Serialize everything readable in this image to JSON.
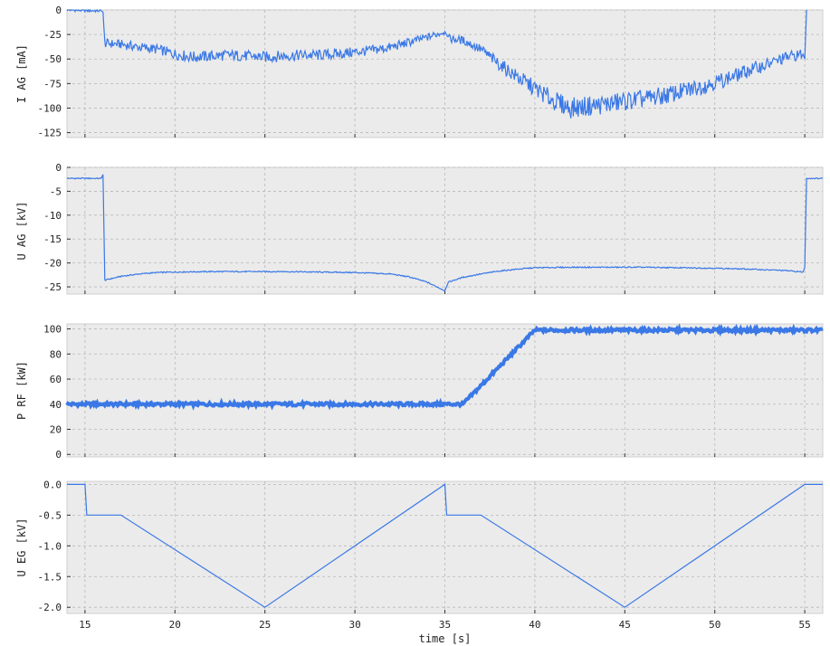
{
  "chart_data": [
    {
      "type": "line",
      "ylabel": "I AG [mA]",
      "xlim": [
        14,
        56
      ],
      "ylim": [
        -130,
        0
      ],
      "yticks": [
        0,
        -25,
        -50,
        -75,
        -100,
        -125
      ],
      "grid": true,
      "color": "#3a78e6",
      "x": [
        14,
        15.9,
        16.0,
        16.1,
        17,
        18,
        19,
        20,
        21,
        22,
        23,
        24,
        25,
        26,
        27,
        28,
        29,
        30,
        31,
        32,
        33,
        34,
        35,
        35.2,
        36,
        37,
        38,
        39,
        40,
        41,
        42,
        43,
        44,
        45,
        46,
        47,
        48,
        49,
        50,
        51,
        52,
        53,
        54,
        54.9,
        55.0,
        55.1
      ],
      "y": [
        0,
        -1,
        -2,
        -34,
        -35,
        -38,
        -40,
        -45,
        -48,
        -47,
        -46,
        -47,
        -48,
        -47,
        -46,
        -46,
        -45,
        -43,
        -41,
        -38,
        -33,
        -28,
        -22,
        -29,
        -31,
        -40,
        -55,
        -68,
        -80,
        -92,
        -100,
        -98,
        -96,
        -93,
        -91,
        -88,
        -84,
        -79,
        -74,
        -68,
        -61,
        -55,
        -48,
        -45,
        -50,
        0
      ]
    },
    {
      "type": "line",
      "ylabel": "U AG [kV]",
      "xlim": [
        14,
        56
      ],
      "ylim": [
        -26.5,
        0
      ],
      "yticks": [
        0,
        -5,
        -10,
        -15,
        -20,
        -25
      ],
      "grid": true,
      "color": "#3a78e6",
      "x": [
        14,
        15.9,
        16.0,
        16.1,
        17,
        18,
        19,
        20,
        22,
        24,
        26,
        28,
        30,
        32,
        33,
        34,
        35,
        35.2,
        36,
        37,
        38,
        39,
        40,
        42,
        44,
        46,
        48,
        50,
        52,
        54,
        54.9,
        55.0,
        55.1,
        56
      ],
      "y": [
        -2.3,
        -2.3,
        -1.5,
        -23.6,
        -22.8,
        -22.3,
        -22.0,
        -21.9,
        -21.8,
        -21.8,
        -21.8,
        -21.9,
        -22.0,
        -22.3,
        -22.9,
        -24.0,
        -25.8,
        -24.0,
        -23.0,
        -22.3,
        -21.7,
        -21.3,
        -21.0,
        -20.9,
        -20.9,
        -20.9,
        -21.0,
        -21.1,
        -21.3,
        -21.6,
        -21.9,
        -21.0,
        -2.3,
        -2.3
      ]
    },
    {
      "type": "line",
      "ylabel": "P RF [kW]",
      "xlim": [
        14,
        56
      ],
      "ylim": [
        -2,
        104
      ],
      "yticks": [
        0,
        20,
        40,
        60,
        80,
        100
      ],
      "grid": true,
      "color": "#3a78e6",
      "x": [
        14,
        36,
        40,
        56
      ],
      "y": [
        40,
        40,
        99,
        99
      ]
    },
    {
      "type": "line",
      "ylabel": "U EG [kV]",
      "xlabel": "time [s]",
      "xlim": [
        14,
        56
      ],
      "ylim": [
        -2.1,
        0.05
      ],
      "xticks": [
        15,
        20,
        25,
        30,
        35,
        40,
        45,
        50,
        55
      ],
      "yticks": [
        0.0,
        -0.5,
        -1.0,
        -1.5,
        -2.0
      ],
      "grid": true,
      "color": "#3a78e6",
      "x": [
        14,
        15,
        15.1,
        17,
        25,
        35,
        35.1,
        37,
        45,
        55,
        56
      ],
      "y": [
        0,
        0,
        -0.5,
        -0.5,
        -2.0,
        0,
        -0.5,
        -0.5,
        -2.0,
        0,
        0
      ]
    }
  ]
}
